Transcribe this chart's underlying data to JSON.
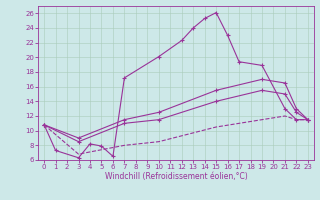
{
  "title": "",
  "xlabel": "Windchill (Refroidissement éolien,°C)",
  "bg_color": "#cde8e8",
  "line_color": "#993399",
  "xlim": [
    -0.5,
    23.5
  ],
  "ylim": [
    6,
    27
  ],
  "yticks": [
    6,
    8,
    10,
    12,
    14,
    16,
    18,
    20,
    22,
    24,
    26
  ],
  "xticks": [
    0,
    1,
    2,
    3,
    4,
    5,
    6,
    7,
    8,
    9,
    10,
    11,
    12,
    13,
    14,
    15,
    16,
    17,
    18,
    19,
    20,
    21,
    22,
    23
  ],
  "curve1_x": [
    0,
    1,
    3,
    4,
    5,
    6,
    7,
    10,
    12,
    13,
    14,
    15,
    16,
    17,
    19,
    21,
    22,
    23
  ],
  "curve1_y": [
    10.8,
    7.3,
    6.3,
    8.2,
    7.9,
    6.5,
    17.2,
    20.1,
    22.3,
    24.0,
    25.3,
    26.1,
    23.0,
    19.4,
    18.9,
    13.0,
    11.5,
    11.5
  ],
  "curve2_x": [
    0,
    3,
    7,
    10,
    15,
    19,
    21,
    22,
    23
  ],
  "curve2_y": [
    10.8,
    9.0,
    11.5,
    12.5,
    15.5,
    17.0,
    16.5,
    13.0,
    11.5
  ],
  "curve3_x": [
    0,
    3,
    7,
    10,
    15,
    19,
    21,
    22,
    23
  ],
  "curve3_y": [
    10.8,
    8.5,
    11.0,
    11.5,
    14.0,
    15.5,
    15.0,
    12.5,
    11.5
  ],
  "curve4_x": [
    0,
    3,
    7,
    10,
    15,
    19,
    21,
    22,
    23
  ],
  "curve4_y": [
    10.8,
    6.8,
    8.0,
    8.5,
    10.5,
    11.5,
    12.0,
    11.5,
    11.5
  ],
  "grid_color": "#aaccbb",
  "font_size_tick": 5,
  "font_size_xlabel": 5.5
}
